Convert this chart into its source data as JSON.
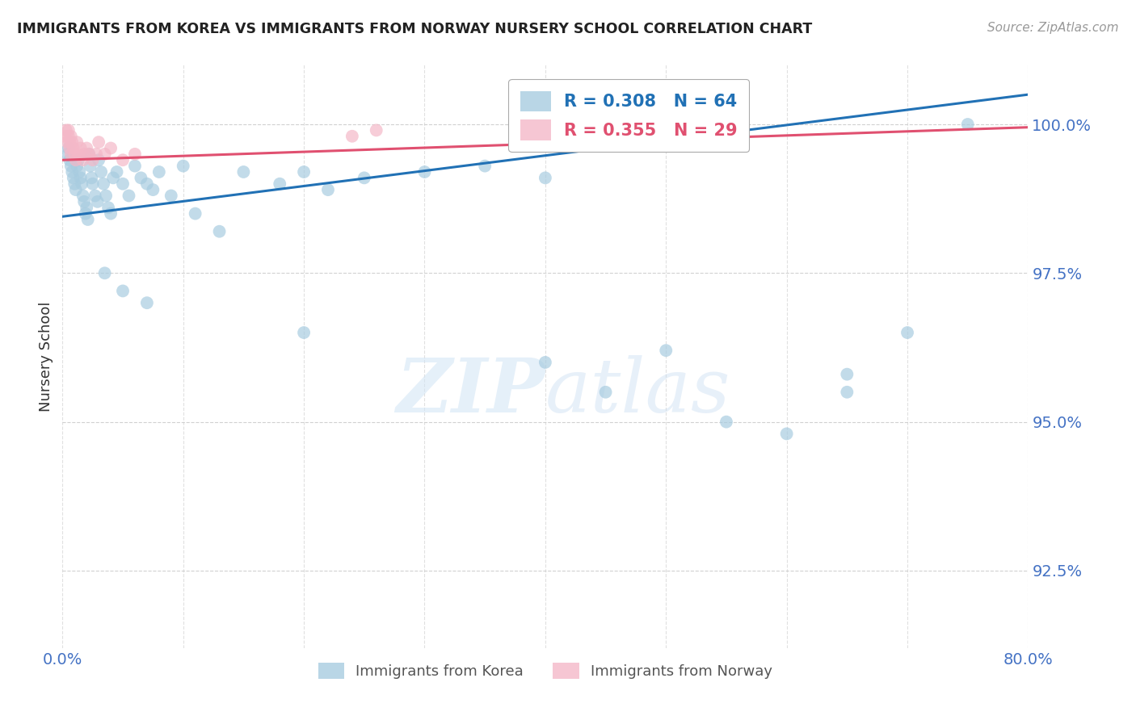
{
  "title": "IMMIGRANTS FROM KOREA VS IMMIGRANTS FROM NORWAY NURSERY SCHOOL CORRELATION CHART",
  "source": "Source: ZipAtlas.com",
  "ylabel": "Nursery School",
  "xlim": [
    0.0,
    80.0
  ],
  "ylim": [
    91.2,
    101.0
  ],
  "korea_color": "#a8cce0",
  "norway_color": "#f4b8c8",
  "korea_line_color": "#2171b5",
  "norway_line_color": "#e05070",
  "background_color": "#ffffff",
  "grid_color": "#cccccc",
  "tick_label_color": "#4472c4",
  "watermark_zip": "ZIP",
  "watermark_atlas": "atlas",
  "korea_x": [
    0.4,
    0.5,
    0.6,
    0.7,
    0.8,
    0.9,
    1.0,
    1.1,
    1.2,
    1.3,
    1.4,
    1.5,
    1.6,
    1.7,
    1.8,
    1.9,
    2.0,
    2.1,
    2.2,
    2.3,
    2.4,
    2.5,
    2.7,
    2.9,
    3.0,
    3.2,
    3.4,
    3.6,
    3.8,
    4.0,
    4.2,
    4.5,
    5.0,
    5.5,
    6.0,
    6.5,
    7.0,
    7.5,
    8.0,
    9.0,
    10.0,
    11.0,
    13.0,
    15.0,
    18.0,
    20.0,
    22.0,
    25.0,
    30.0,
    35.0,
    40.0,
    45.0,
    50.0,
    55.0,
    60.0,
    65.0,
    70.0,
    3.5,
    5.0,
    7.0,
    20.0,
    40.0,
    65.0,
    75.0
  ],
  "korea_y": [
    99.5,
    99.6,
    99.4,
    99.3,
    99.2,
    99.1,
    99.0,
    98.9,
    99.3,
    99.4,
    99.2,
    99.1,
    99.0,
    98.8,
    98.7,
    98.5,
    98.6,
    98.4,
    99.5,
    99.3,
    99.1,
    99.0,
    98.8,
    98.7,
    99.4,
    99.2,
    99.0,
    98.8,
    98.6,
    98.5,
    99.1,
    99.2,
    99.0,
    98.8,
    99.3,
    99.1,
    99.0,
    98.9,
    99.2,
    98.8,
    99.3,
    98.5,
    98.2,
    99.2,
    99.0,
    99.2,
    98.9,
    99.1,
    99.2,
    99.3,
    99.1,
    95.5,
    96.2,
    95.0,
    94.8,
    95.5,
    96.5,
    97.5,
    97.2,
    97.0,
    96.5,
    96.0,
    95.8,
    100.0
  ],
  "norway_x": [
    0.2,
    0.3,
    0.4,
    0.5,
    0.5,
    0.6,
    0.6,
    0.7,
    0.7,
    0.8,
    0.9,
    1.0,
    1.1,
    1.2,
    1.3,
    1.5,
    1.7,
    1.8,
    2.0,
    2.2,
    2.5,
    2.8,
    3.0,
    3.5,
    4.0,
    5.0,
    6.0,
    24.0,
    26.0
  ],
  "norway_y": [
    99.8,
    99.9,
    99.7,
    99.8,
    99.9,
    99.6,
    99.7,
    99.8,
    99.5,
    99.7,
    99.6,
    99.5,
    99.4,
    99.7,
    99.5,
    99.6,
    99.4,
    99.5,
    99.6,
    99.5,
    99.4,
    99.5,
    99.7,
    99.5,
    99.6,
    99.4,
    99.5,
    99.8,
    99.9
  ],
  "korea_line_x0": 0.0,
  "korea_line_y0": 98.45,
  "korea_line_x1": 80.0,
  "korea_line_y1": 100.5,
  "norway_line_x0": 0.0,
  "norway_line_y0": 99.4,
  "norway_line_x1": 80.0,
  "norway_line_y1": 99.95,
  "yticks": [
    92.5,
    95.0,
    97.5,
    100.0
  ],
  "ytick_labels": [
    "92.5%",
    "95.0%",
    "97.5%",
    "100.0%"
  ]
}
